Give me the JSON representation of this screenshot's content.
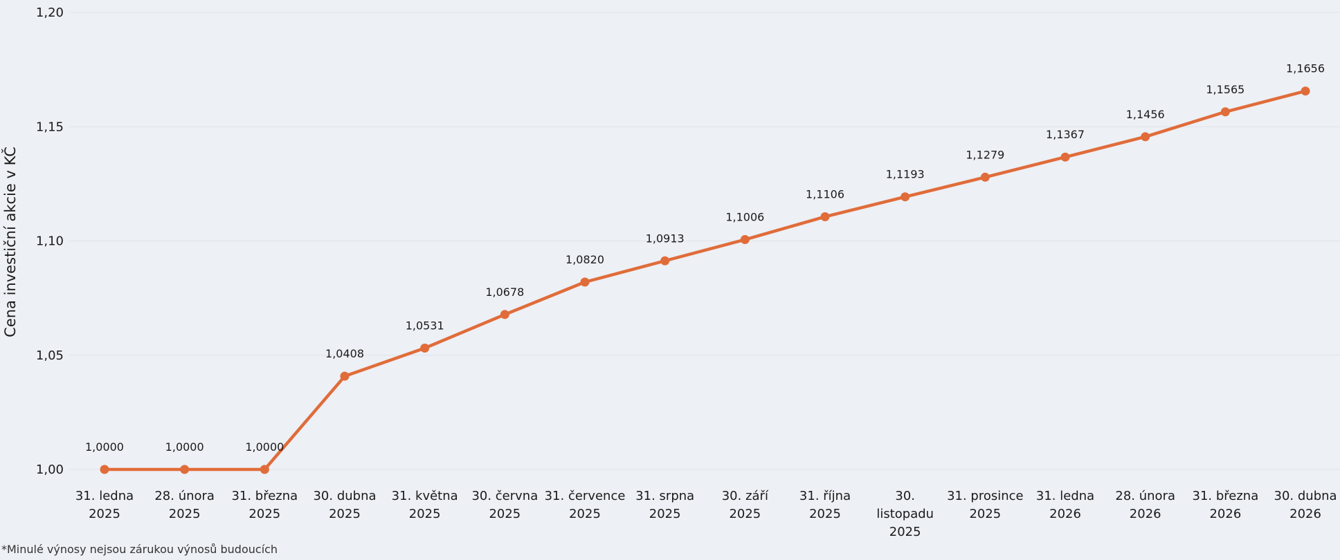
{
  "footnote": "*Minulé výnosy nejsou zárukou výnosů budoucích",
  "colors": {
    "series": "#e06c3a",
    "background": "#edf0f5",
    "grid": "#dfe3e9"
  },
  "chart_data": {
    "type": "line",
    "title": "",
    "xlabel": "",
    "ylabel": "Cena investiční akcie v KČ",
    "ylim": [
      1.0,
      1.2
    ],
    "yticks": [
      1.0,
      1.05,
      1.1,
      1.15,
      1.2
    ],
    "ytick_labels": [
      "1,00",
      "1,05",
      "1,10",
      "1,15",
      "1,20"
    ],
    "grid": true,
    "legend": "none",
    "categories": [
      [
        "31. ledna",
        "2025"
      ],
      [
        "28. února",
        "2025"
      ],
      [
        "31. března",
        "2025"
      ],
      [
        "30. dubna",
        "2025"
      ],
      [
        "31. května",
        "2025"
      ],
      [
        "30. června",
        "2025"
      ],
      [
        "31. července",
        "2025"
      ],
      [
        "31. srpna",
        "2025"
      ],
      [
        "30. září",
        "2025"
      ],
      [
        "31. října",
        "2025"
      ],
      [
        "30.",
        "listopadu",
        "2025"
      ],
      [
        "31. prosince",
        "2025"
      ],
      [
        "31. ledna",
        "2026"
      ],
      [
        "28. února",
        "2026"
      ],
      [
        "31. března",
        "2026"
      ],
      [
        "30. dubna",
        "2026"
      ]
    ],
    "values": [
      1.0,
      1.0,
      1.0,
      1.0408,
      1.0531,
      1.0678,
      1.082,
      1.0913,
      1.1006,
      1.1106,
      1.1193,
      1.1279,
      1.1367,
      1.1456,
      1.1565,
      1.1656
    ],
    "value_labels": [
      "1,0000",
      "1,0000",
      "1,0000",
      "1,0408",
      "1,0531",
      "1,0678",
      "1,0820",
      "1,0913",
      "1,1006",
      "1,1106",
      "1,1193",
      "1,1279",
      "1,1367",
      "1,1456",
      "1,1565",
      "1,1656"
    ]
  }
}
